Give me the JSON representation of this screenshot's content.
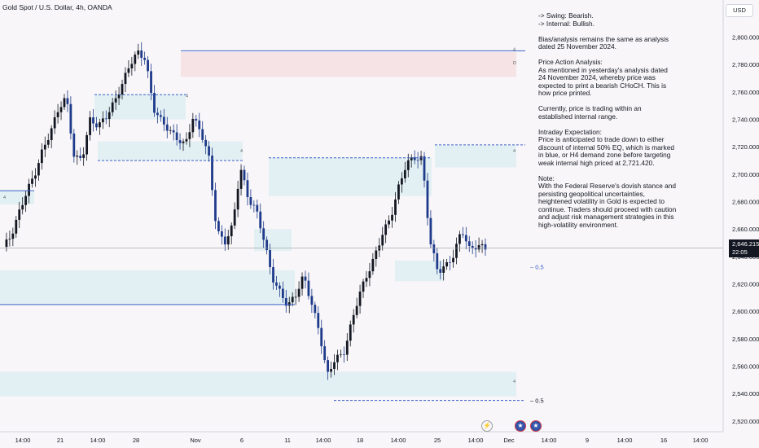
{
  "header": {
    "title": "Gold Spot / U.S. Dollar, 4h, OANDA"
  },
  "currency_button": "USD",
  "current_price": {
    "value": "2,646.215",
    "countdown": "22:05"
  },
  "notes": [
    "-> Swing:  Bearish.",
    "-> Internal:  Bullish.",
    "",
    "Bias/analysis remains the same as analysis dated 25 November 2024.",
    "",
    "Price Action Analysis:",
    "As mentioned in yesterday's analysis dated 24 November 2024, whereby price was expected to print a bearish CHoCH.  This is how price printed.",
    "",
    "Currently, price is trading within an established internal range.",
    "",
    "Intraday Expectation:",
    "Price is anticipated to trade down to either discount of internal 50% EQ, which is marked in blue, or H4 demand zone before targeting weak internal high priced at 2,721.420.",
    "",
    "Note:",
    "With the Federal Reserve's dovish stance and persisting geopolitical uncertainties, heightened volatility in Gold is expected to continue. Traders should proceed with caution and adjust risk management strategies in this high-volatility environment."
  ],
  "annotations": {
    "eq_label": "0.5",
    "zone_mark_4": "4",
    "zone_mark_d": "D"
  },
  "icons": [
    "lightning-icon",
    "us-flag-icon",
    "us-flag-icon"
  ],
  "colors": {
    "bull": "#131722",
    "bear": "#1e3a8a",
    "zone_blue": "#e3f0f3",
    "zone_red": "#f5e3e5",
    "line_blue": "#3b5fc9"
  },
  "chart_data": {
    "type": "candlestick",
    "symbol": "Gold Spot / U.S. Dollar",
    "timeframe": "4h",
    "ylim": [
      2514,
      2814
    ],
    "y_ticks": [
      2520,
      2540,
      2560,
      2580,
      2600,
      2620,
      2640,
      2660,
      2680,
      2700,
      2720,
      2740,
      2760,
      2780,
      2800
    ],
    "y_tick_labels": [
      "2,520.000",
      "2,540.000",
      "2,560.000",
      "2,580.000",
      "2,600.000",
      "2,620.000",
      "2,640.000",
      "2,660.000",
      "2,680.000",
      "2,700.000",
      "2,720.000",
      "2,740.000",
      "2,760.000",
      "2,780.000",
      "2,800.000"
    ],
    "x_tick_labels": [
      "14:00",
      "21",
      "14:00",
      "28",
      "Nov",
      "6",
      "11",
      "14:00",
      "18",
      "14:00",
      "25",
      "14:00",
      "Dec",
      "14:00",
      "9",
      "14:00",
      "16",
      "14:00"
    ],
    "close_path": [
      2647,
      2655,
      2672,
      2688,
      2700,
      2718,
      2731,
      2748,
      2756,
      2711,
      2712,
      2740,
      2735,
      2742,
      2752,
      2765,
      2780,
      2789,
      2784,
      2748,
      2739,
      2732,
      2726,
      2721,
      2741,
      2731,
      2713,
      2659,
      2650,
      2662,
      2705,
      2682,
      2674,
      2652,
      2625,
      2614,
      2604,
      2612,
      2626,
      2606,
      2585,
      2553,
      2566,
      2568,
      2590,
      2612,
      2626,
      2640,
      2657,
      2668,
      2690,
      2708,
      2712,
      2711,
      2651,
      2629,
      2633,
      2641,
      2660,
      2645,
      2648,
      2646.215
    ],
    "levels": {
      "weak_internal_high": 2721.42,
      "swing_high": 2790,
      "internal_eq_50": 2632.5,
      "swing_eq_50": 2535
    },
    "zones": [
      {
        "kind": "supply",
        "low": 2771,
        "high": 2789
      },
      {
        "kind": "demand",
        "low": 2644,
        "high": 2660
      },
      {
        "kind": "demand",
        "low": 2605,
        "high": 2630
      },
      {
        "kind": "demand",
        "low": 2538,
        "high": 2556
      },
      {
        "kind": "internal-discount",
        "low": 2622,
        "high": 2637
      },
      {
        "kind": "demand",
        "low": 2684,
        "high": 2712
      },
      {
        "kind": "demand",
        "low": 2705,
        "high": 2721
      }
    ]
  }
}
